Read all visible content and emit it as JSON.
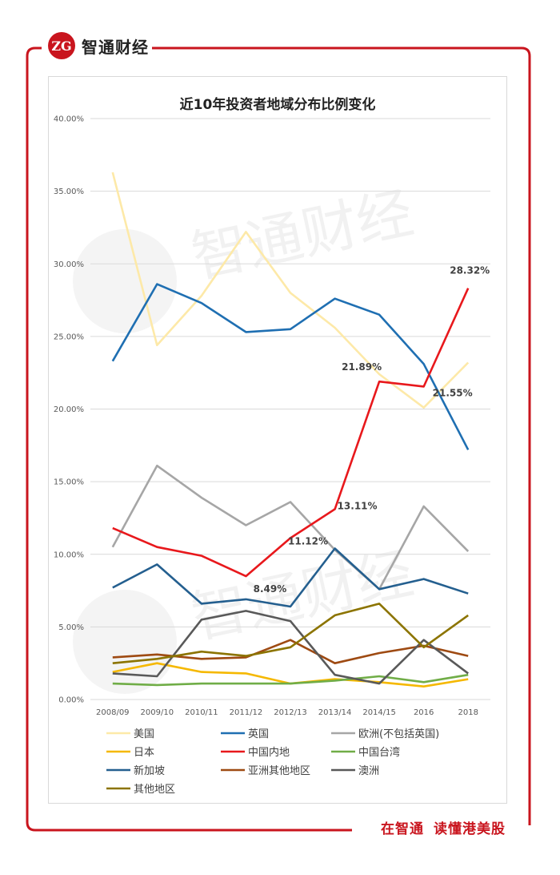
{
  "brand": {
    "name": "智通财经",
    "logo_text": "ZG"
  },
  "slogan": {
    "part1": "在智通",
    "part2": "读懂港美股"
  },
  "watermark": "智通财经",
  "colors": {
    "frame": "#c9151e",
    "grid": "#d9d9d9"
  },
  "chart_data": {
    "type": "line",
    "title": "近10年投资者地域分布比例变化",
    "categories": [
      "2008/09",
      "2009/10",
      "2010/11",
      "2011/12",
      "2012/13",
      "2013/14",
      "2014/15",
      "2016",
      "2018"
    ],
    "ylim": [
      0,
      40
    ],
    "yticks": [
      0,
      5,
      10,
      15,
      20,
      25,
      30,
      35,
      40
    ],
    "ytick_labels": [
      "0.00%",
      "5.00%",
      "10.00%",
      "15.00%",
      "20.00%",
      "25.00%",
      "30.00%",
      "35.00%",
      "40.00%"
    ],
    "grid": true,
    "legend_position": "bottom",
    "series": [
      {
        "name": "美国",
        "color": "#fde9a8",
        "values": [
          36.3,
          24.4,
          27.8,
          32.2,
          28.0,
          25.6,
          22.4,
          20.1,
          23.2
        ]
      },
      {
        "name": "英国",
        "color": "#1f6fb2",
        "values": [
          23.3,
          28.6,
          27.3,
          25.3,
          25.5,
          27.6,
          26.5,
          23.1,
          17.2
        ]
      },
      {
        "name": "欧洲(不包括英国)",
        "color": "#a6a6a6",
        "values": [
          10.5,
          16.1,
          13.9,
          12.0,
          13.6,
          10.3,
          7.6,
          13.3,
          10.2
        ]
      },
      {
        "name": "日本",
        "color": "#f5b800",
        "values": [
          1.9,
          2.5,
          1.9,
          1.8,
          1.1,
          1.4,
          1.2,
          0.9,
          1.4
        ]
      },
      {
        "name": "中国内地",
        "color": "#e8181c",
        "values": [
          11.8,
          10.5,
          9.9,
          8.49,
          11.12,
          13.11,
          21.89,
          21.55,
          28.32
        ]
      },
      {
        "name": "中国台湾",
        "color": "#70ad47",
        "values": [
          1.1,
          1.0,
          1.1,
          1.1,
          1.1,
          1.3,
          1.6,
          1.2,
          1.7
        ]
      },
      {
        "name": "新加坡",
        "color": "#245f8f",
        "values": [
          7.7,
          9.3,
          6.6,
          6.9,
          6.4,
          10.4,
          7.6,
          8.3,
          7.3
        ]
      },
      {
        "name": "亚洲其他地区",
        "color": "#9e4a12",
        "values": [
          2.9,
          3.1,
          2.8,
          2.9,
          4.1,
          2.5,
          3.2,
          3.7,
          3.0
        ]
      },
      {
        "name": "澳洲",
        "color": "#595959",
        "values": [
          1.8,
          1.6,
          5.5,
          6.1,
          5.4,
          1.7,
          1.1,
          4.1,
          1.8
        ]
      },
      {
        "name": "其他地区",
        "color": "#8c7400",
        "values": [
          2.5,
          2.8,
          3.3,
          3.0,
          3.6,
          5.8,
          6.6,
          3.6,
          5.8
        ]
      }
    ],
    "annotations": [
      {
        "series": "中国内地",
        "index": 3,
        "text": "8.49%"
      },
      {
        "series": "中国内地",
        "index": 4,
        "text": "11.12%"
      },
      {
        "series": "中国内地",
        "index": 5,
        "text": "13.11%"
      },
      {
        "series": "中国内地",
        "index": 6,
        "text": "21.89%"
      },
      {
        "series": "中国内地",
        "index": 7,
        "text": "21.55%"
      },
      {
        "series": "中国内地",
        "index": 8,
        "text": "28.32%"
      }
    ]
  }
}
